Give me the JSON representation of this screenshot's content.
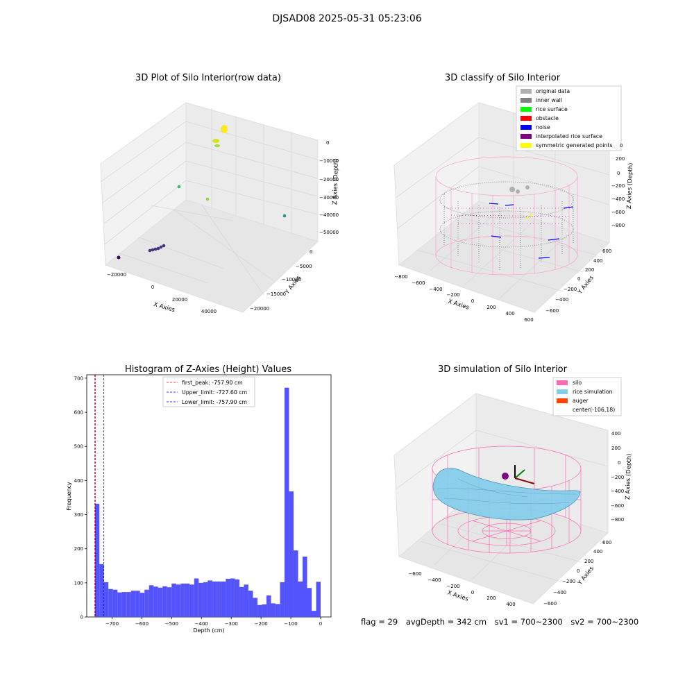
{
  "suptitle": "DJSAD08 2025-05-31 05:23:06",
  "footer": {
    "flag": "flag = 29",
    "avg_depth": "avgDepth = 342 cm",
    "sv1": "sv1 = 700~2300",
    "sv2": "sv2 = 700~2300"
  },
  "colors": {
    "hist_bar": "#4b4bff",
    "first_peak_line": "#ff0000",
    "limit_line": "#0000ff",
    "silo": "#ff69b4",
    "rice_simulation": "#87ceeb",
    "auger": "#ff4500",
    "original_data": "#b0b0b0",
    "inner_wall": "#808080",
    "rice_surface": "#00ff00",
    "obstacle": "#ff0000",
    "noise": "#0000ff",
    "interpolated_rice_surface": "#800080",
    "symmetric_generated_points": "#ffff00"
  },
  "chart_data": [
    {
      "type": "scatter",
      "title": "3D Plot of Silo Interior(row data)",
      "xlabel": "X Axies",
      "ylabel": "Y Axies",
      "zlabel": "Z Axies (Depth)",
      "x_ticks": [
        "−20000",
        "0",
        "20000",
        "40000"
      ],
      "y_ticks": [
        "0",
        "−5000",
        "−10000",
        "−15000",
        "−20000"
      ],
      "z_ticks": [
        "0",
        "−10000",
        "−20000",
        "−30000",
        "−40000",
        "−50000"
      ]
    },
    {
      "type": "scatter",
      "title": "3D classify of Silo Interior",
      "xlabel": "X Axies",
      "ylabel": "Y Axies",
      "zlabel": "Z Axies (Depth)",
      "x_ticks": [
        "−800",
        "−600",
        "−400",
        "−200",
        "0",
        "200",
        "400",
        "600"
      ],
      "y_ticks": [
        "600",
        "400",
        "200",
        "0",
        "−200",
        "−400",
        "−600"
      ],
      "z_ticks": [
        "200",
        "0",
        "−200",
        "−400",
        "−600",
        "−800"
      ],
      "z_extra_tick": "0",
      "legend": [
        "original data",
        "inner wall",
        "rice surface",
        "obstacle",
        "noise",
        "interpolated rice surface",
        "symmetric generated points"
      ]
    },
    {
      "type": "bar",
      "title": "Histogram of Z-Axies (Height) Values",
      "xlabel": "Depth (cm)",
      "ylabel": "Frequency",
      "xlim": [
        -785,
        35
      ],
      "ylim": [
        0,
        710
      ],
      "x_ticks": [
        -700,
        -600,
        -500,
        -400,
        -300,
        -200,
        -100,
        0
      ],
      "x_tick_labels": [
        "−700",
        "−600",
        "−500",
        "−400",
        "−300",
        "−200",
        "−100",
        "0"
      ],
      "y_ticks": [
        0,
        100,
        200,
        300,
        400,
        500,
        600,
        700
      ],
      "bin_start": -757.9,
      "bin_width": 15.16,
      "values": [
        332,
        155,
        102,
        82,
        80,
        72,
        73,
        73,
        77,
        77,
        71,
        80,
        93,
        89,
        86,
        90,
        87,
        98,
        95,
        98,
        98,
        95,
        113,
        100,
        102,
        107,
        104,
        104,
        104,
        112,
        113,
        110,
        88,
        95,
        77,
        56,
        35,
        37,
        63,
        40,
        38,
        102,
        672,
        368,
        195,
        104,
        177,
        85,
        18,
        103
      ],
      "vlines": [
        {
          "name": "first_peak",
          "value": -757.9,
          "label": "first_peak: -757.90 cm"
        },
        {
          "name": "Upper_limit",
          "value": -727.6,
          "label": "Upper_limit: -727.60 cm"
        },
        {
          "name": "Lower_limit",
          "value": -757.9,
          "label": "Lower_limit: -757.90 cm"
        }
      ],
      "legend_placement": "top-center"
    },
    {
      "type": "area",
      "title": "3D simulation of Silo Interior",
      "xlabel": "X Axies",
      "ylabel": "Y Axies",
      "zlabel": "Z Axies (Depth)",
      "x_ticks": [
        "−600",
        "−400",
        "−200",
        "0",
        "200",
        "400"
      ],
      "y_ticks": [
        "600",
        "400",
        "200",
        "0",
        "−200",
        "−400",
        "−600"
      ],
      "z_ticks": [
        "400",
        "200",
        "0",
        "−200",
        "−400",
        "−600",
        "−800"
      ],
      "legend": [
        "silo",
        "rice simulation",
        "auger",
        "center(-106,18)"
      ]
    }
  ]
}
